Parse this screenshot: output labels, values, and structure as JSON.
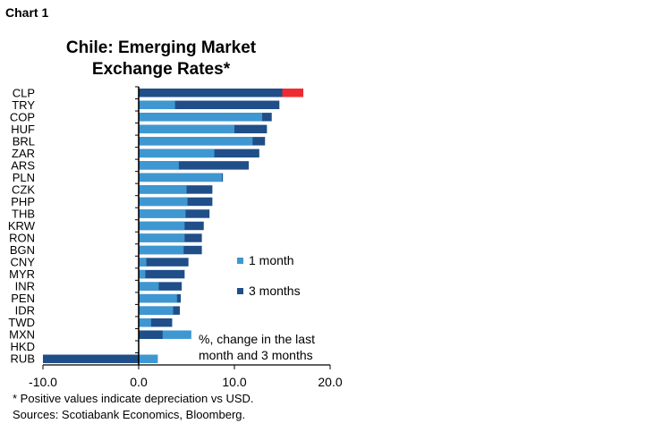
{
  "figure_label": "Chart 1",
  "notes": {
    "line1": "* Positive values indicate depreciation vs USD.",
    "line2": "Sources: Scotiabank Economics, Bloomberg."
  },
  "colors": {
    "one_month": "#3e97d1",
    "three_months": "#1f4e89",
    "highlight": "#ee2a33"
  },
  "chart_data": {
    "type": "bar",
    "orientation": "horizontal",
    "title_lines": [
      "Chile: Emerging Market",
      "Exchange Rates*"
    ],
    "annotation_lines": [
      "%, change in the last",
      "month and 3 months"
    ],
    "categories": [
      "CLP",
      "TRY",
      "COP",
      "HUF",
      "BRL",
      "ZAR",
      "ARS",
      "PLN",
      "CZK",
      "PHP",
      "THB",
      "KRW",
      "RON",
      "BGN",
      "CNY",
      "MYR",
      "INR",
      "PEN",
      "IDR",
      "TWD",
      "MXN",
      "HKD",
      "RUB"
    ],
    "series": [
      {
        "name": "1 month",
        "values": [
          17.2,
          3.8,
          12.9,
          10.0,
          11.9,
          7.9,
          4.2,
          8.7,
          5.0,
          5.1,
          4.9,
          4.8,
          4.8,
          4.7,
          0.8,
          0.7,
          2.1,
          4.0,
          3.6,
          1.3,
          5.5,
          0.0,
          2.0
        ]
      },
      {
        "name": "3 months",
        "values": [
          15.0,
          14.7,
          13.9,
          13.4,
          13.2,
          12.6,
          11.5,
          8.8,
          7.7,
          7.7,
          7.4,
          6.8,
          6.6,
          6.6,
          5.2,
          4.8,
          4.5,
          4.4,
          4.3,
          3.5,
          2.5,
          0.0,
          -10.0
        ]
      }
    ],
    "highlight_category": "CLP",
    "xlim": [
      -10,
      20
    ],
    "xticks": [
      "-10.0",
      "0.0",
      "10.0",
      "20.0"
    ],
    "xtick_values": [
      -10,
      0,
      10,
      20
    ],
    "legend": [
      "1 month",
      "3 months"
    ],
    "legend_position": "center-right",
    "grid": false
  }
}
